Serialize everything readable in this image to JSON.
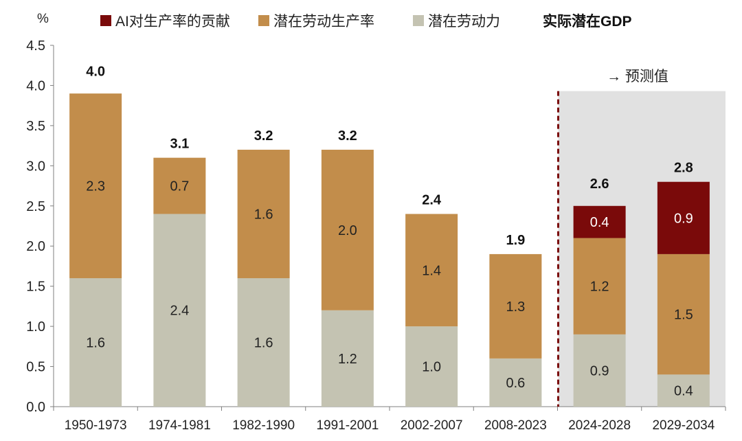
{
  "chart_data": {
    "type": "bar",
    "stacked": true,
    "unit_label": "%",
    "ylim": [
      0,
      4.5
    ],
    "yticks": [
      0.0,
      0.5,
      1.0,
      1.5,
      2.0,
      2.5,
      3.0,
      3.5,
      4.0,
      4.5
    ],
    "ytick_labels": [
      "0.0",
      "0.5",
      "1.0",
      "1.5",
      "2.0",
      "2.5",
      "3.0",
      "3.5",
      "4.0",
      "4.5"
    ],
    "categories": [
      "1950-1973",
      "1974-1981",
      "1982-1990",
      "1991-2001",
      "2002-2007",
      "2008-2023",
      "2024-2028",
      "2029-2034"
    ],
    "series": [
      {
        "name": "潜在劳动力",
        "color": "#c4c3b2",
        "label_color": "#222222",
        "values": [
          1.6,
          2.4,
          1.6,
          1.2,
          1.0,
          0.6,
          0.9,
          0.4
        ],
        "labels": [
          "1.6",
          "2.4",
          "1.6",
          "1.2",
          "1.0",
          "0.6",
          "0.9",
          "0.4"
        ]
      },
      {
        "name": "潜在劳动生产率",
        "color": "#c28d4b",
        "label_color": "#222222",
        "values": [
          2.3,
          0.7,
          1.6,
          2.0,
          1.4,
          1.3,
          1.2,
          1.5
        ],
        "labels": [
          "2.3",
          "0.7",
          "1.6",
          "2.0",
          "1.4",
          "1.3",
          "1.2",
          "1.5"
        ]
      },
      {
        "name": "AI对生产率的贡献",
        "color": "#7a0a0a",
        "label_color": "#ffffff",
        "values": [
          null,
          null,
          null,
          null,
          null,
          null,
          0.4,
          0.9
        ],
        "labels": [
          "",
          "",
          "",
          "",
          "",
          "",
          "0.4",
          "0.9"
        ]
      }
    ],
    "totals_name": "实际潜在GDP",
    "totals": [
      4.0,
      3.1,
      3.2,
      3.2,
      2.4,
      1.9,
      2.6,
      2.8
    ],
    "total_labels": [
      "4.0",
      "3.1",
      "3.2",
      "3.2",
      "2.4",
      "1.9",
      "2.6",
      "2.8"
    ],
    "forecast_label": "→ 预测值",
    "forecast_start_index": 6,
    "legend": [
      {
        "label": "AI对生产率的贡献",
        "color": "#7a0a0a",
        "style": "swatch"
      },
      {
        "label": "潜在劳动生产率",
        "color": "#c28d4b",
        "style": "swatch"
      },
      {
        "label": "潜在劳动力",
        "color": "#c4c3b2",
        "style": "swatch"
      },
      {
        "label": "实际潜在GDP",
        "style": "bold-text"
      }
    ],
    "legend_position": "top",
    "grid": false
  }
}
